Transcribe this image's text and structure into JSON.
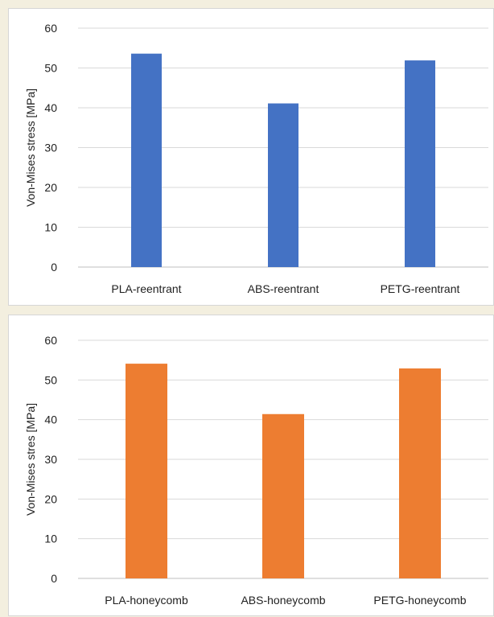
{
  "chart_data": [
    {
      "type": "bar",
      "categories": [
        "PLA-reentrant",
        "ABS-reentrant",
        "PETG-reentrant"
      ],
      "values": [
        53.6,
        41.1,
        51.9
      ],
      "ylabel": "Von-Mises stress  [MPa]",
      "xlabel": "",
      "ylim": [
        0,
        60
      ],
      "yticks": [
        0,
        10,
        20,
        30,
        40,
        50,
        60
      ],
      "grid": true,
      "color": "#4472c4"
    },
    {
      "type": "bar",
      "categories": [
        "PLA-honeycomb",
        "ABS-honeycomb",
        "PETG-honeycomb"
      ],
      "values": [
        54.1,
        41.4,
        52.9
      ],
      "ylabel": "Von-Mises stres [MPa]",
      "xlabel": "",
      "ylim": [
        0,
        60
      ],
      "yticks": [
        0,
        10,
        20,
        30,
        40,
        50,
        60
      ],
      "grid": true,
      "color": "#ed7d31"
    }
  ]
}
